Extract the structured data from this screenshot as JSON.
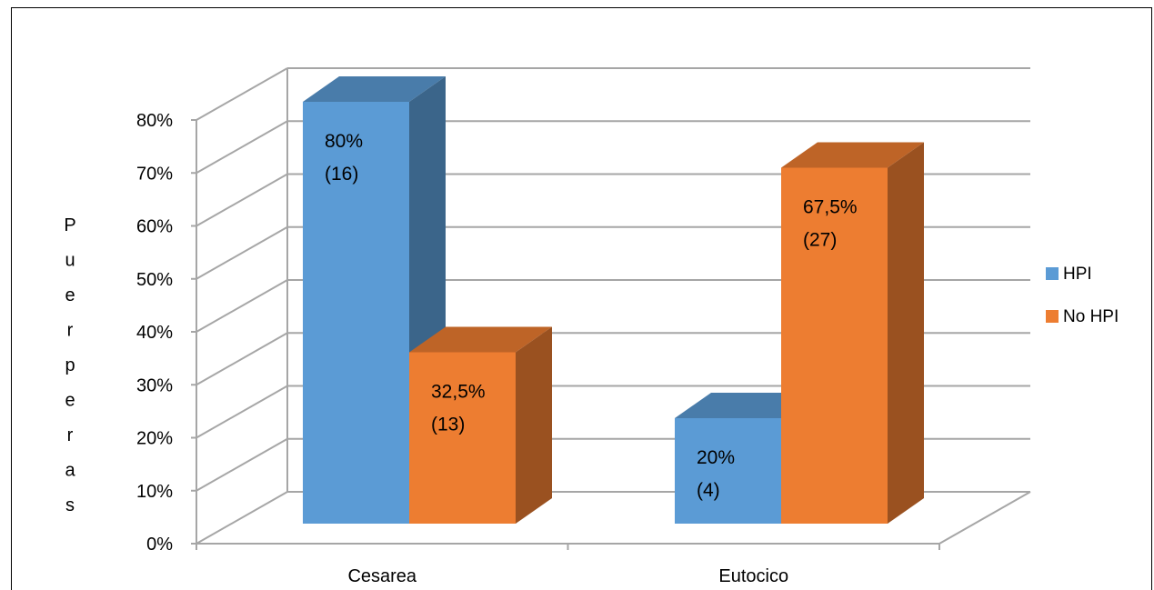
{
  "chart_data": {
    "type": "bar",
    "categories": [
      "Cesarea",
      "Eutocico"
    ],
    "series": [
      {
        "name": "HPI",
        "values": [
          80,
          20
        ],
        "labels": [
          "80%",
          "20%"
        ],
        "counts": [
          "(16)",
          "(4)"
        ],
        "color": "#5B9BD5"
      },
      {
        "name": "No HPI",
        "values": [
          32.5,
          67.5
        ],
        "labels": [
          "32,5%",
          "67,5%"
        ],
        "counts": [
          "(13)",
          "(27)"
        ],
        "color": "#ED7D31"
      }
    ],
    "ylabel": "Puerperas",
    "ylim": [
      0,
      80
    ],
    "yticks": [
      "0%",
      "10%",
      "20%",
      "30%",
      "40%",
      "50%",
      "60%",
      "70%",
      "80%"
    ],
    "grid": true,
    "legend_position": "right",
    "style": "3d-clustered-column"
  }
}
